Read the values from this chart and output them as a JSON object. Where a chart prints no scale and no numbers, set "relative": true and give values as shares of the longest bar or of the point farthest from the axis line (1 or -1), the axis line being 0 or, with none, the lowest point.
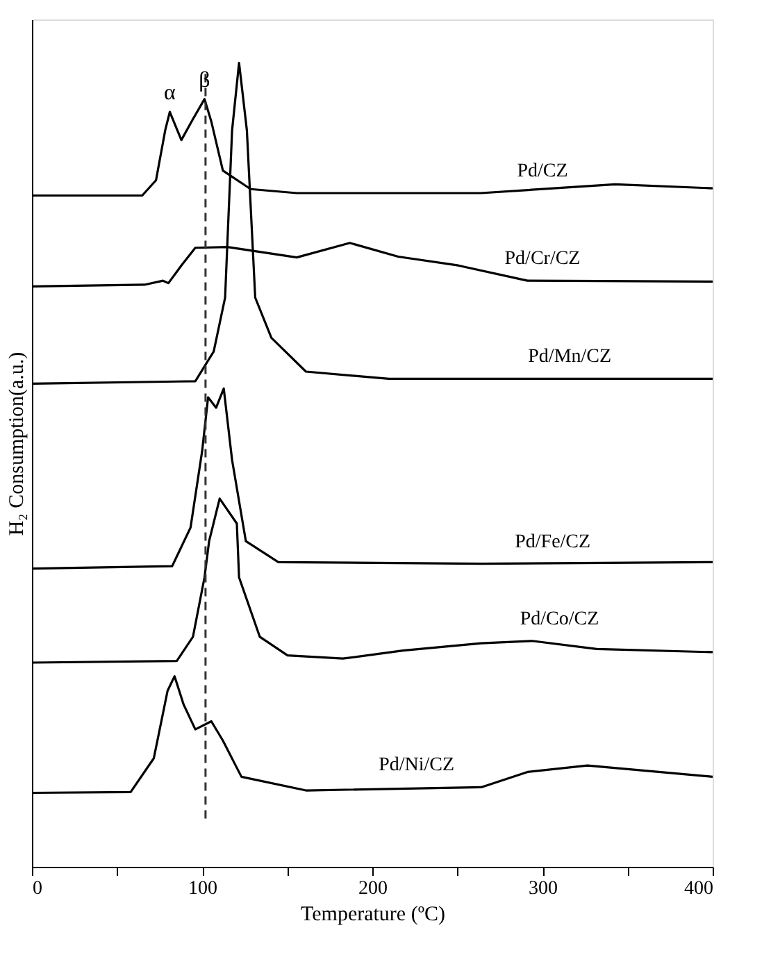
{
  "chart_data": {
    "type": "line",
    "relative": true,
    "xlabel": "Temperature (ºC)",
    "ylabel": "H₂ Consumption(a.u.)",
    "xlim": [
      0,
      400
    ],
    "xticks": [
      0,
      {
        "value": 50,
        "label": null
      },
      100,
      {
        "value": 150,
        "label": null
      },
      200,
      {
        "value": 250,
        "label": null
      },
      300,
      {
        "value": 350,
        "label": null
      },
      400
    ],
    "tick_labels": "x",
    "grid": false,
    "marker": "none",
    "line_style": "solid",
    "ref_lines": [
      {
        "axis": "x",
        "value": 102,
        "line_style": "dashed",
        "color": "#333333"
      }
    ],
    "annotations": [
      {
        "text": "α",
        "x": 81,
        "y": 0.939
      },
      {
        "text": "β",
        "x": 101.4,
        "y": 0.955
      }
    ],
    "series": [
      {
        "name": "Pd/CZ",
        "color": "#000000",
        "x": [
          0,
          64.8,
          72.9,
          78.3,
          81,
          87.8,
          94.6,
          101.4,
          105.4,
          112.2,
          128.5,
          155.6,
          263.8,
          342.7,
          400
        ],
        "values": [
          0.835,
          0.835,
          0.854,
          0.916,
          0.939,
          0.904,
          0.93,
          0.955,
          0.927,
          0.866,
          0.843,
          0.838,
          0.838,
          0.849,
          0.844
        ]
      },
      {
        "name": "Pd/Cr/CZ",
        "color": "#000000",
        "x": [
          0,
          66.1,
          77,
          80.2,
          87.8,
          96,
          114.9,
          155.6,
          186.8,
          215.2,
          250.5,
          291.2,
          400
        ],
        "values": [
          0.722,
          0.724,
          0.729,
          0.726,
          0.748,
          0.77,
          0.771,
          0.758,
          0.776,
          0.759,
          0.748,
          0.729,
          0.728
        ]
      },
      {
        "name": "Pd/Mn/CZ",
        "color": "#000000",
        "x": [
          0,
          96,
          106.8,
          113.5,
          117.6,
          121.7,
          126.3,
          131.2,
          140.7,
          161,
          209.8,
          400
        ],
        "values": [
          0.601,
          0.604,
          0.641,
          0.708,
          0.916,
          1.0,
          0.916,
          0.708,
          0.658,
          0.616,
          0.607,
          0.607
        ]
      },
      {
        "name": "Pd/Fe/CZ",
        "color": "#000000",
        "x": [
          0,
          82.4,
          93.2,
          100,
          103.5,
          108.2,
          112.7,
          117.6,
          125.7,
          144.8,
          264,
          400
        ],
        "values": [
          0.371,
          0.374,
          0.422,
          0.517,
          0.584,
          0.571,
          0.595,
          0.506,
          0.405,
          0.379,
          0.377,
          0.379
        ]
      },
      {
        "name": "Pd/Co/CZ",
        "color": "#000000",
        "x": [
          0,
          85.1,
          94.6,
          101.4,
          104.1,
          110.3,
          120.4,
          121.7,
          133.9,
          150.2,
          182.7,
          218,
          264,
          293.9,
          331.8,
          400
        ],
        "values": [
          0.254,
          0.256,
          0.286,
          0.36,
          0.405,
          0.458,
          0.427,
          0.36,
          0.286,
          0.263,
          0.259,
          0.269,
          0.278,
          0.281,
          0.271,
          0.267
        ]
      },
      {
        "name": "Pd/Ni/CZ",
        "color": "#000000",
        "x": [
          0,
          58,
          71.6,
          79.7,
          83.8,
          89.1,
          96,
          105.4,
          112.2,
          123.1,
          161,
          264,
          291.2,
          326.4,
          400
        ],
        "values": [
          0.092,
          0.093,
          0.135,
          0.219,
          0.237,
          0.202,
          0.171,
          0.181,
          0.157,
          0.112,
          0.095,
          0.099,
          0.118,
          0.126,
          0.112
        ]
      }
    ]
  }
}
